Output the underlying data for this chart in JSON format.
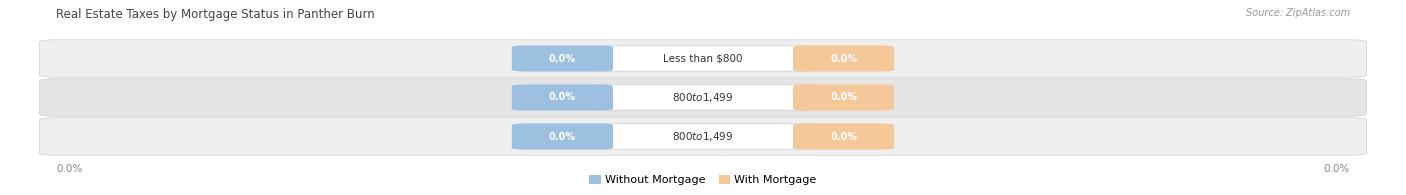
{
  "title": "Real Estate Taxes by Mortgage Status in Panther Burn",
  "source": "Source: ZipAtlas.com",
  "categories": [
    "Less than $800",
    "$800 to $1,499",
    "$800 to $1,499"
  ],
  "without_mortgage_values": [
    0.0,
    0.0,
    0.0
  ],
  "with_mortgage_values": [
    0.0,
    0.0,
    0.0
  ],
  "without_mortgage_color": "#9dbfe0",
  "with_mortgage_color": "#f5c89a",
  "row_bg_colors": [
    "#efefef",
    "#e5e5e5",
    "#efefef"
  ],
  "row_line_color": "#d0d0d0",
  "title_color": "#444444",
  "source_color": "#999999",
  "label_color": "#333333",
  "value_color_white": "#ffffff",
  "axis_text_color": "#888888",
  "title_fontsize": 8.5,
  "source_fontsize": 7.0,
  "label_fontsize": 7.5,
  "value_fontsize": 7.0,
  "axis_label_fontsize": 7.5,
  "legend_fontsize": 8.0,
  "axis_value_left": "0.0%",
  "axis_value_right": "0.0%",
  "legend_label1": "Without Mortgage",
  "legend_label2": "With Mortgage",
  "figsize": [
    14.06,
    1.95
  ],
  "dpi": 100
}
